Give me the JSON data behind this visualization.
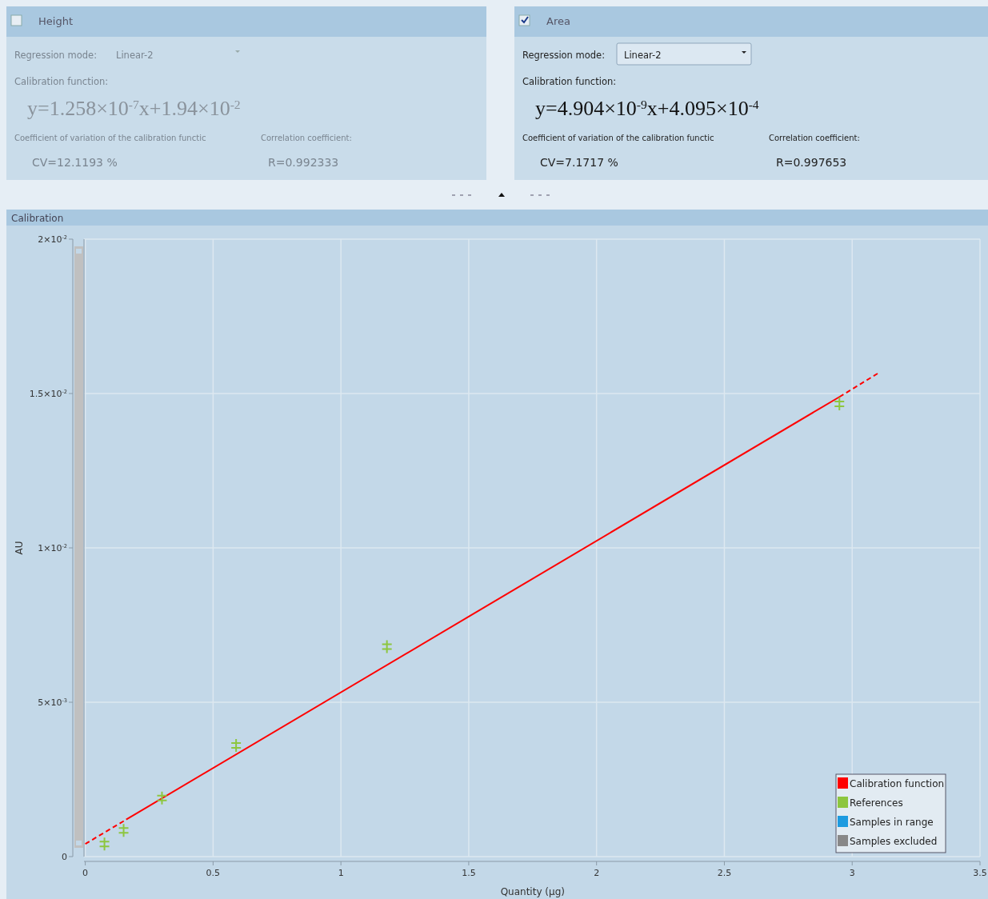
{
  "chart_data": [
    {
      "type": "other",
      "title": "Height",
      "annotations": [
        "Regression mode:",
        "Linear-2",
        "Calibration function:",
        "y=1.258×10$^{-7}$x+1.94×10$^{-2}$",
        "Coefficient of variation of the calibration functic",
        "Correlation coefficient:",
        "CV=12.1193 %",
        "R=0.992333"
      ]
    },
    {
      "type": "other",
      "title": "Area",
      "annotations": [
        "Regression mode:",
        "Linear-2",
        "Calibration function:",
        "y=4.904×10$^{-9}$x+4.095×10$^{-4}$",
        "Coefficient of variation of the calibration functic",
        "Correlation coefficient:",
        "CV=7.1717 %",
        "R=0.997653"
      ]
    },
    {
      "type": "scatter",
      "title": "Calibration",
      "xlabel": "Quantity (µg)",
      "ylabel": "AU",
      "xlim": [
        -0.005,
        3.5
      ],
      "ylim": [
        0,
        0.02
      ],
      "xticks": [
        0,
        0.5,
        1,
        1.5,
        2,
        2.5,
        3,
        3.5
      ],
      "yticks": [
        0,
        {
          "value": 0.005,
          "label": "5×10$^{-3}$"
        },
        {
          "value": 0.01,
          "label": "1×10$^{-2}$"
        },
        {
          "value": 0.015,
          "label": "1.5×10$^{-2}$"
        },
        {
          "value": 0.02,
          "label": "2×10$^{-2}$"
        }
      ],
      "grid": true,
      "legend": "bottom right",
      "series": [
        {
          "name": "Calibration function",
          "type": "line",
          "color": "#ff0000",
          "line_style": "solid",
          "marker": "none",
          "x": [
            0.16,
            2.95
          ],
          "values": [
            0.0012,
            0.01489
          ]
        },
        {
          "type": "line",
          "color": "#ff0000",
          "line_style": "dashed",
          "marker": "none",
          "x": [
            0,
            0.16
          ],
          "values": [
            0.00041,
            0.0012
          ]
        },
        {
          "type": "line",
          "color": "#ff0000",
          "line_style": "dashed",
          "marker": "none",
          "x": [
            2.95,
            3.1
          ],
          "values": [
            0.01489,
            0.01565
          ]
        },
        {
          "name": "References",
          "type": "scatter",
          "color": "#8dc63f",
          "marker": "cross",
          "x": [
            0.075,
            0.15,
            0.3,
            0.59,
            1.18,
            2.95
          ],
          "values": [
            0.00041,
            0.00085,
            0.0019,
            0.0036,
            0.0068,
            0.01466
          ]
        },
        {
          "name": "Samples in range",
          "type": "scatter",
          "color": "#1e9be0"
        },
        {
          "name": "Samples excluded",
          "type": "scatter",
          "color": "#888888"
        }
      ]
    }
  ]
}
